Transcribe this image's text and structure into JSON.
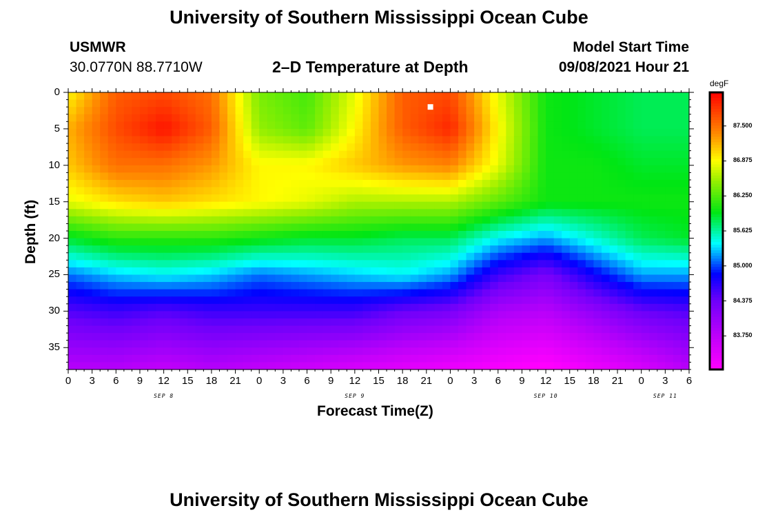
{
  "header": {
    "title_top": "University of Southern Mississippi Ocean Cube",
    "title_bottom": "University of Southern Mississippi Ocean Cube",
    "station_id": "USMWR",
    "coordinates": "30.0770N  88.7710W",
    "plot_title": "2–D Temperature at Depth",
    "model_start_label": "Model Start Time",
    "model_start_value": "09/08/2021 Hour 21"
  },
  "chart_data": {
    "type": "heatmap",
    "title": "2–D Temperature at Depth",
    "xlabel": "Forecast Time(Z)",
    "ylabel": "Depth (ft)",
    "x_tick_labels": [
      "0",
      "3",
      "6",
      "9",
      "12",
      "15",
      "18",
      "21",
      "0",
      "3",
      "6",
      "9",
      "12",
      "15",
      "18",
      "21",
      "0",
      "3",
      "6",
      "9",
      "12",
      "15",
      "18",
      "21",
      "0",
      "3",
      "6"
    ],
    "x_range_hours": [
      0,
      78
    ],
    "date_labels": [
      {
        "label": "SEP 8",
        "hour": 12
      },
      {
        "label": "SEP 9",
        "hour": 36
      },
      {
        "label": "SEP 10",
        "hour": 60
      },
      {
        "label": "SEP 11",
        "hour": 75
      }
    ],
    "y_ticks": [
      0,
      5,
      10,
      15,
      20,
      25,
      30,
      35
    ],
    "ylim": [
      0,
      38
    ],
    "colorbar": {
      "unit": "degF",
      "ticks": [
        "87.500",
        "86.875",
        "86.250",
        "85.625",
        "85.000",
        "84.375",
        "83.750"
      ],
      "min": 83.15,
      "max": 88.1
    },
    "depths_ft": [
      0,
      5,
      10,
      15,
      20,
      25,
      30,
      38
    ],
    "hours": [
      0,
      6,
      12,
      18,
      24,
      30,
      36,
      42,
      48,
      54,
      60,
      66,
      72,
      78
    ],
    "temperature_degF": [
      [
        86.9,
        87.6,
        87.7,
        87.5,
        86.4,
        86.2,
        86.8,
        87.6,
        87.7,
        86.8,
        86.0,
        85.9,
        85.8,
        85.8
      ],
      [
        87.2,
        87.7,
        88.0,
        87.6,
        86.5,
        86.3,
        86.9,
        87.6,
        87.9,
        86.9,
        86.0,
        85.9,
        85.8,
        85.8
      ],
      [
        87.1,
        87.5,
        87.5,
        87.3,
        86.9,
        86.9,
        87.1,
        87.3,
        87.4,
        86.8,
        86.0,
        86.0,
        85.9,
        85.9
      ],
      [
        86.8,
        87.0,
        87.1,
        87.0,
        86.9,
        86.8,
        86.6,
        86.6,
        86.6,
        86.3,
        86.0,
        86.0,
        86.0,
        86.0
      ],
      [
        85.9,
        86.1,
        86.1,
        86.1,
        86.0,
        85.9,
        85.9,
        85.8,
        85.8,
        85.4,
        85.2,
        85.5,
        85.8,
        85.9
      ],
      [
        85.1,
        85.3,
        85.4,
        85.3,
        85.1,
        85.2,
        85.3,
        85.4,
        85.2,
        84.6,
        84.3,
        84.8,
        85.2,
        85.2
      ],
      [
        84.5,
        84.6,
        84.5,
        84.6,
        84.6,
        84.6,
        84.6,
        84.4,
        84.3,
        83.9,
        83.8,
        84.1,
        84.4,
        84.5
      ],
      [
        83.8,
        83.8,
        83.7,
        83.8,
        83.7,
        83.6,
        83.5,
        83.4,
        83.3,
        83.2,
        83.1,
        83.3,
        83.5,
        83.8
      ]
    ],
    "marker": {
      "hour": 45.5,
      "depth_ft": 2
    }
  }
}
